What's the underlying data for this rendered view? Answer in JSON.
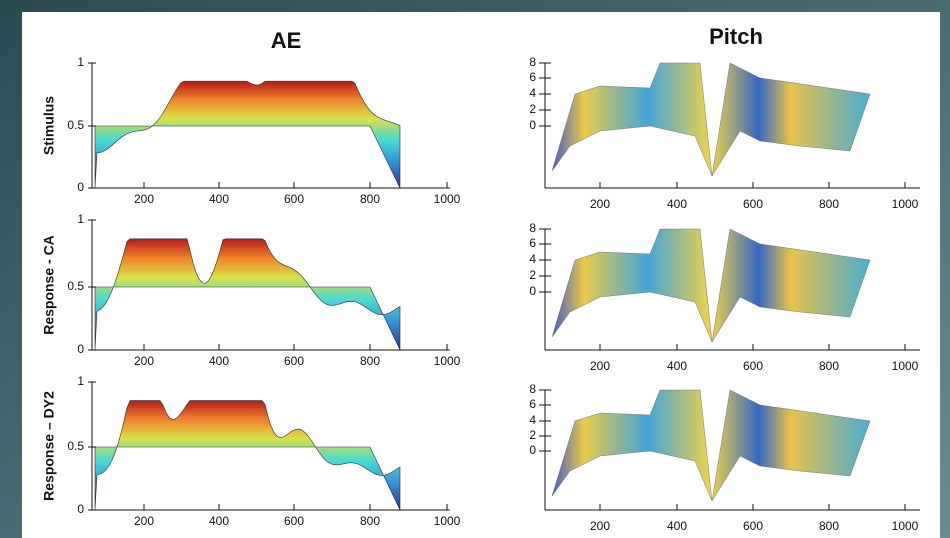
{
  "columns": [
    {
      "title": "AE",
      "yticks": [
        "1",
        "0.5",
        "0"
      ]
    },
    {
      "title": "Pitch",
      "yticks": [
        "8",
        "6",
        "4",
        "2",
        "0"
      ]
    }
  ],
  "rows": [
    {
      "label": "Stimulus"
    },
    {
      "label": "Response - CA"
    },
    {
      "label": "Response – DY2"
    }
  ],
  "xticks": [
    "200",
    "400",
    "600",
    "800",
    "1000"
  ]
}
